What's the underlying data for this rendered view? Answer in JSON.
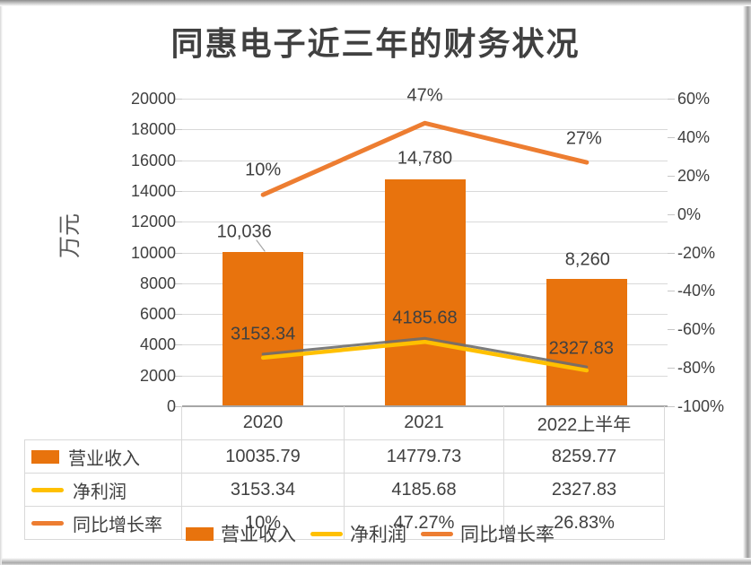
{
  "title": "同惠电子近三年的财务状况",
  "axes": {
    "left": {
      "title": "万元",
      "ticks": [
        "20000",
        "18000",
        "16000",
        "14000",
        "12000",
        "10000",
        "8000",
        "6000",
        "4000",
        "2000",
        "0"
      ]
    },
    "right": {
      "ticks": [
        "60%",
        "40%",
        "20%",
        "0%",
        "-20%",
        "-40%",
        "-60%",
        "-80%",
        "-100%"
      ]
    }
  },
  "chart_data": {
    "type": "combo-bar-line",
    "title": "同惠电子近三年的财务状况",
    "categories": [
      "2020",
      "2021",
      "2022上半年"
    ],
    "left_axis": {
      "label": "万元",
      "range": [
        0,
        20000
      ],
      "tick_step": 2000
    },
    "right_axis": {
      "label": "",
      "range": [
        -100,
        60
      ],
      "tick_step": 20,
      "unit": "%"
    },
    "grid": "horizontal",
    "legend_position": "bottom",
    "series": [
      {
        "name": "营业收入",
        "type": "bar",
        "axis": "left",
        "color": "#E8730D",
        "values": [
          10035.79,
          14779.73,
          8259.77
        ],
        "point_labels": [
          "10,036",
          "14,780",
          "8,260"
        ]
      },
      {
        "name": "净利润",
        "type": "line",
        "axis": "left",
        "color": "#FFC000",
        "values": [
          3153.34,
          4185.68,
          2327.83
        ],
        "point_labels": [
          "3153.34",
          "4185.68",
          "2327.83"
        ]
      },
      {
        "name": "同比增长率",
        "type": "line",
        "axis": "right",
        "color": "#ED7D31",
        "values": [
          10,
          47.27,
          26.83
        ],
        "point_labels": [
          "10%",
          "47%",
          "27%"
        ]
      }
    ]
  },
  "table": {
    "corner": "",
    "col_headers": [
      "2020",
      "2021",
      "2022上半年"
    ],
    "rows": [
      {
        "label": "营业收入",
        "swatch": "bar",
        "values": [
          "10035.79",
          "14779.73",
          "8259.77"
        ]
      },
      {
        "label": "净利润",
        "swatch": "line-gold",
        "values": [
          "3153.34",
          "4185.68",
          "2327.83"
        ]
      },
      {
        "label": "同比增长率",
        "swatch": "line-orange",
        "values": [
          "10%",
          "47.27%",
          "26.83%"
        ]
      }
    ]
  },
  "legend": {
    "items": [
      {
        "label": "营业收入",
        "swatch": "bar"
      },
      {
        "label": "净利润",
        "swatch": "line-gold"
      },
      {
        "label": "同比增长率",
        "swatch": "line-orange"
      }
    ]
  },
  "colors": {
    "bar": "#E8730D",
    "net_profit_line": "#FFC000",
    "net_profit_shadow": "#6E6E6E",
    "growth_line": "#ED7D31",
    "text": "#404040",
    "grid": "#D9D9D9",
    "axis_line": "#A6A6A6",
    "table_border": "#D9D9D9"
  }
}
